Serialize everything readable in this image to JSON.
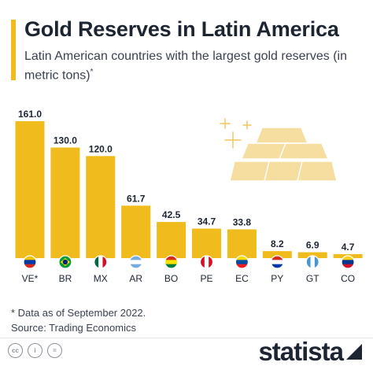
{
  "title": "Gold Reserves in Latin America",
  "subtitle": "Latin American countries with the largest gold reserves (in metric tons)",
  "subtitle_marker": "*",
  "footnote_lines": [
    "* Data as of September 2022.",
    "Source: Trading Economics"
  ],
  "brand": "statista",
  "license_icons": [
    "cc-icon",
    "person-icon",
    "equals-icon"
  ],
  "colors": {
    "bar": "#f0bb1d",
    "accent": "#f0bb1d",
    "text": "#1d2533"
  },
  "chart_data": {
    "type": "bar",
    "categories": [
      "VE*",
      "BR",
      "MX",
      "AR",
      "BO",
      "PE",
      "EC",
      "PY",
      "GT",
      "CO"
    ],
    "values": [
      161.0,
      130.0,
      120.0,
      61.7,
      42.5,
      34.7,
      33.8,
      8.2,
      6.9,
      4.7
    ],
    "value_labels": [
      "161.0",
      "130.0",
      "120.0",
      "61.7",
      "42.5",
      "34.7",
      "33.8",
      "8.2",
      "6.9",
      "4.7"
    ],
    "flags": [
      "venezuela-flag-icon",
      "brazil-flag-icon",
      "mexico-flag-icon",
      "argentina-flag-icon",
      "bolivia-flag-icon",
      "peru-flag-icon",
      "ecuador-flag-icon",
      "paraguay-flag-icon",
      "guatemala-flag-icon",
      "colombia-flag-icon"
    ],
    "title": "",
    "xlabel": "",
    "ylabel": "",
    "ylim": [
      0,
      161
    ],
    "grid": false,
    "legend": "none"
  }
}
